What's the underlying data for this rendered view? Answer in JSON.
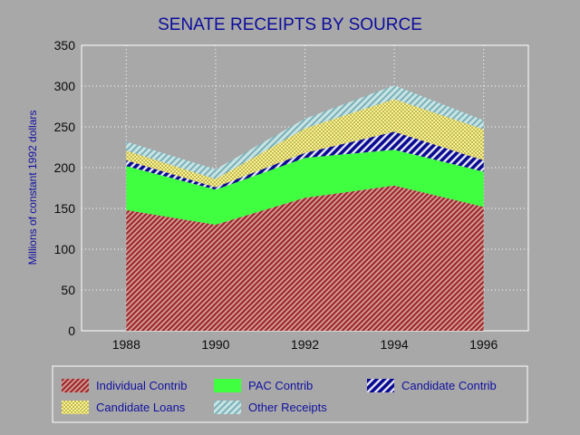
{
  "chart_data": {
    "type": "area",
    "stacked": true,
    "title": "SENATE RECEIPTS BY SOURCE",
    "xlabel": "",
    "ylabel": "Millions of constant 1992 dollars",
    "categories": [
      "1988",
      "1990",
      "1992",
      "1994",
      "1996"
    ],
    "x": [
      1988,
      1990,
      1992,
      1994,
      1996
    ],
    "ylim": [
      0,
      350
    ],
    "yticks": [
      0,
      50,
      100,
      150,
      200,
      250,
      300,
      350
    ],
    "grid": true,
    "legend_position": "bottom",
    "series": [
      {
        "name": "Individual Contrib",
        "values": [
          148,
          130,
          163,
          178,
          152
        ],
        "color": "#a83c3c",
        "pattern": "diagonal-stripes"
      },
      {
        "name": "PAC Contrib",
        "values": [
          54,
          43,
          49,
          44,
          43
        ],
        "color": "#40ff40",
        "pattern": "solid"
      },
      {
        "name": "Candidate Contrib",
        "values": [
          7,
          3,
          6,
          22,
          14
        ],
        "color": "#1010a0",
        "pattern": "bold-diagonal-stripes"
      },
      {
        "name": "Candidate Loans",
        "values": [
          12,
          10,
          30,
          40,
          38
        ],
        "color": "#f0f080",
        "pattern": "checker"
      },
      {
        "name": "Other Receipts",
        "values": [
          11,
          12,
          12,
          17,
          11
        ],
        "color": "#8cc8c8",
        "pattern": "diagonal-stripes"
      }
    ]
  }
}
